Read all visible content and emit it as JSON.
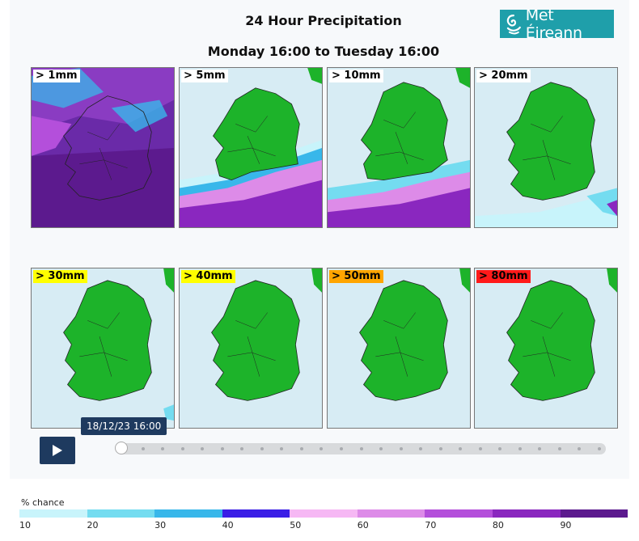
{
  "title": "24 Hour Precipitation",
  "subtitle": "Monday 16:00 to Tuesday 16:00",
  "logo": {
    "text": "Met Éireann",
    "icon": "met-eireann-swirl-icon"
  },
  "panels": [
    {
      "label": "> 1mm",
      "label_color": "#ffffff"
    },
    {
      "label": "> 5mm",
      "label_color": "#ffffff"
    },
    {
      "label": "> 10mm",
      "label_color": "#ffffff"
    },
    {
      "label": "> 20mm",
      "label_color": "#ffffff"
    },
    {
      "label": "> 30mm",
      "label_color": "#ffff00"
    },
    {
      "label": "> 40mm",
      "label_color": "#ffff00"
    },
    {
      "label": "> 50mm",
      "label_color": "#ffa500"
    },
    {
      "label": "> 80mm",
      "label_color": "#ff1a1a"
    }
  ],
  "player": {
    "current_time": "18/12/23 16:00",
    "play_icon": "play-icon",
    "step_count": 25,
    "current_step": 0
  },
  "legend": {
    "label": "% chance",
    "ticks": [
      "10",
      "20",
      "30",
      "40",
      "50",
      "60",
      "70",
      "80",
      "90"
    ],
    "colors": [
      "#c8f4fb",
      "#74dcf0",
      "#38b7ea",
      "#3a1ee6",
      "#f6b8f4",
      "#dd8be8",
      "#b44fdb",
      "#8a27bf",
      "#5c1a8e"
    ]
  },
  "colors": {
    "land": "#1db32a",
    "sea": "#d7ecf4",
    "player_bg": "#1e3a5f",
    "logo_bg": "#1f9faa"
  }
}
